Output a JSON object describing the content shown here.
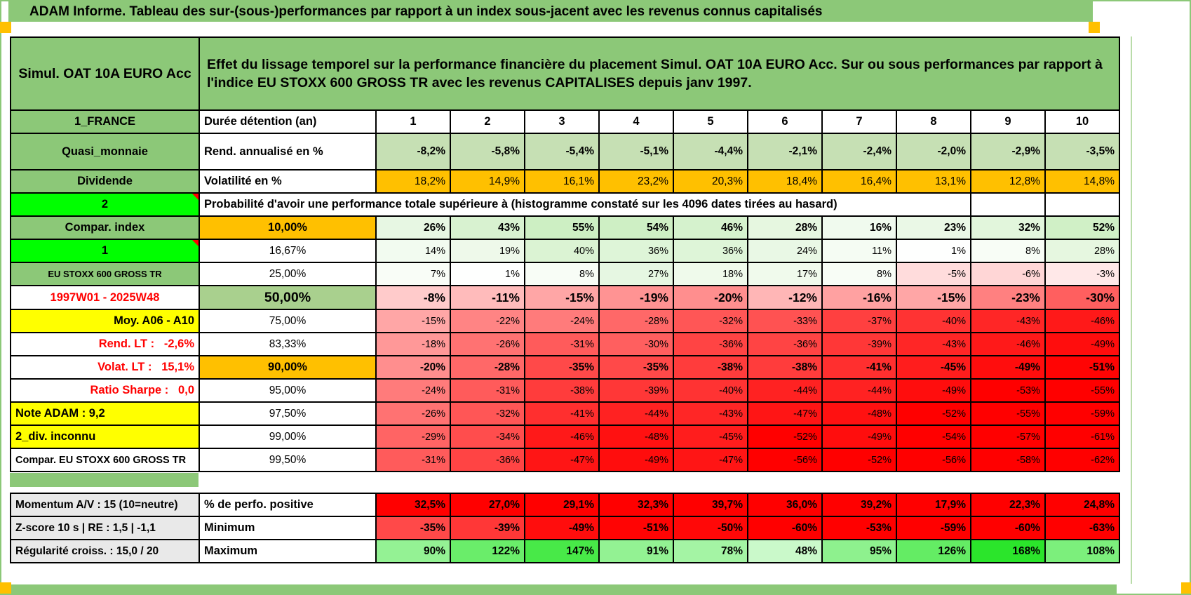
{
  "spreadsheet": {
    "title": "ADAM Informe. Tableau des sur-(sous-)performances par rapport à un index sous-jacent avec les revenus connus capitalisés",
    "product": "Simul. OAT 10A EURO Acc",
    "description": "Effet du lissage temporel sur la performance financière du placement Simul. OAT 10A EURO Acc. Sur ou sous performances par rapport à l'indice EU STOXX 600 GROSS TR avec les revenus CAPITALISES depuis janv 1997.",
    "columns": [
      "1",
      "2",
      "3",
      "4",
      "5",
      "6",
      "7",
      "8",
      "9",
      "10"
    ],
    "rows": [
      {
        "name": "holding-period",
        "a": "1_FRANCE",
        "aStyle": "green",
        "b": "Durée détention (an)",
        "bStyle": "lab",
        "vStyle": "hdr",
        "values": [
          "1",
          "2",
          "3",
          "4",
          "5",
          "6",
          "7",
          "8",
          "9",
          "10"
        ]
      },
      {
        "name": "annualized-return",
        "a": "Quasi_monnaie",
        "aStyle": "green",
        "b": "Rend. annualisé en %",
        "bStyle": "lab",
        "vStyle": "sage",
        "values": [
          "-8,2%",
          "-5,8%",
          "-5,4%",
          "-5,1%",
          "-4,4%",
          "-2,1%",
          "-2,4%",
          "-2,0%",
          "-2,9%",
          "-3,5%"
        ]
      },
      {
        "name": "volatility",
        "a": "Dividende",
        "aStyle": "green",
        "b": "Volatilité en %",
        "bStyle": "lab",
        "vStyle": "orange",
        "values": [
          "18,2%",
          "14,9%",
          "16,1%",
          "23,2%",
          "20,3%",
          "18,4%",
          "16,4%",
          "13,1%",
          "12,8%",
          "14,8%"
        ]
      },
      {
        "name": "probability-note",
        "kind": "proba",
        "a": "2",
        "aStyle": "bright",
        "text": "Probabilité d'avoir une performance totale supérieure à (histogramme constaté sur les 4096 dates tirées au hasard)"
      },
      {
        "name": "p10",
        "a": "Compar. index",
        "aStyle": "green",
        "b": "10,00%",
        "bStyle": "orangeC",
        "vStyle": "matB",
        "values": [
          "26%",
          "43%",
          "55%",
          "54%",
          "46%",
          "28%",
          "16%",
          "23%",
          "32%",
          "52%"
        ]
      },
      {
        "name": "p1667",
        "a": "1",
        "aStyle": "bright",
        "b": "16,67%",
        "bStyle": "plainC",
        "vStyle": "mat",
        "values": [
          "14%",
          "19%",
          "40%",
          "36%",
          "36%",
          "24%",
          "11%",
          "1%",
          "8%",
          "28%"
        ]
      },
      {
        "name": "p25",
        "a": "EU STOXX 600 GROSS TR",
        "aStyle": "greenSm",
        "b": "25,00%",
        "bStyle": "plainC",
        "vStyle": "mat",
        "values": [
          "7%",
          "1%",
          "8%",
          "27%",
          "18%",
          "17%",
          "8%",
          "-5%",
          "-6%",
          "-3%"
        ]
      },
      {
        "name": "p50",
        "a": "1997W01 - 2025W48",
        "aStyle": "redC",
        "b": "50,00%",
        "bStyle": "sageC",
        "vStyle": "matBig",
        "values": [
          "-8%",
          "-11%",
          "-15%",
          "-19%",
          "-20%",
          "-12%",
          "-16%",
          "-15%",
          "-23%",
          "-30%"
        ]
      },
      {
        "name": "p75",
        "a": "Moy. A06 - A10",
        "aStyle": "yellowR",
        "b": "75,00%",
        "bStyle": "plainC",
        "vStyle": "mat",
        "values": [
          "-15%",
          "-22%",
          "-24%",
          "-28%",
          "-32%",
          "-33%",
          "-37%",
          "-40%",
          "-43%",
          "-46%"
        ]
      },
      {
        "name": "p8333",
        "a": "Rend. LT :   -2,6%",
        "aStyle": "redR",
        "b": "83,33%",
        "bStyle": "plainC",
        "vStyle": "mat",
        "values": [
          "-18%",
          "-26%",
          "-31%",
          "-30%",
          "-36%",
          "-36%",
          "-39%",
          "-43%",
          "-46%",
          "-49%"
        ]
      },
      {
        "name": "p90",
        "a": "Volat. LT :   15,1%",
        "aStyle": "redR",
        "b": "90,00%",
        "bStyle": "orangeC",
        "vStyle": "matB",
        "values": [
          "-20%",
          "-28%",
          "-35%",
          "-35%",
          "-38%",
          "-38%",
          "-41%",
          "-45%",
          "-49%",
          "-51%"
        ]
      },
      {
        "name": "p95",
        "a": "Ratio Sharpe :   0,0",
        "aStyle": "redR",
        "b": "95,00%",
        "bStyle": "plainC",
        "vStyle": "mat",
        "values": [
          "-24%",
          "-31%",
          "-38%",
          "-39%",
          "-40%",
          "-44%",
          "-44%",
          "-49%",
          "-53%",
          "-55%"
        ]
      },
      {
        "name": "p975",
        "a": "Note ADAM : 9,2",
        "aStyle": "yellowL",
        "b": "97,50%",
        "bStyle": "plainC",
        "vStyle": "mat",
        "values": [
          "-26%",
          "-32%",
          "-41%",
          "-44%",
          "-43%",
          "-47%",
          "-48%",
          "-52%",
          "-55%",
          "-59%"
        ]
      },
      {
        "name": "p99",
        "a": "2_div. inconnu",
        "aStyle": "yellowL",
        "b": "99,00%",
        "bStyle": "plainC",
        "vStyle": "mat",
        "values": [
          "-29%",
          "-34%",
          "-46%",
          "-48%",
          "-45%",
          "-52%",
          "-49%",
          "-54%",
          "-57%",
          "-61%"
        ]
      },
      {
        "name": "p995",
        "a": "Compar. EU STOXX 600 GROSS TR",
        "aStyle": "whiteSm",
        "b": "99,50%",
        "bStyle": "plainC",
        "vStyle": "mat",
        "values": [
          "-31%",
          "-36%",
          "-47%",
          "-49%",
          "-47%",
          "-56%",
          "-52%",
          "-56%",
          "-58%",
          "-62%"
        ]
      }
    ],
    "bottom_rows": [
      {
        "name": "pct-positive",
        "a": "Momentum A/V : 15 (10=neutre)",
        "aStyle": "gray",
        "b": "% de perfo. positive",
        "bStyle": "lab",
        "vStyle": "red",
        "values": [
          "32,5%",
          "27,0%",
          "29,1%",
          "32,3%",
          "39,7%",
          "36,0%",
          "39,2%",
          "17,9%",
          "22,3%",
          "24,8%"
        ]
      },
      {
        "name": "minimum",
        "a": "Z-score 10 s | RE : 1,5 | -1,1",
        "aStyle": "gray",
        "b": "Minimum",
        "bStyle": "lab",
        "vStyle": "min",
        "values": [
          "-35%",
          "-39%",
          "-49%",
          "-51%",
          "-50%",
          "-60%",
          "-53%",
          "-59%",
          "-60%",
          "-63%"
        ]
      },
      {
        "name": "maximum",
        "a": "Régularité croiss. : 15,0 / 20",
        "aStyle": "gray",
        "b": "Maximum",
        "bStyle": "lab",
        "vStyle": "max",
        "values": [
          "90%",
          "122%",
          "147%",
          "91%",
          "78%",
          "48%",
          "95%",
          "126%",
          "168%",
          "108%"
        ]
      }
    ],
    "colors": {
      "band_green": "#8CC878",
      "cell_light_green": "#C6E0B4",
      "cell_mid_green": "#A9D08E",
      "accent_orange": "#FFC000",
      "accent_yellow": "#FFFF00",
      "flag_green": "#00FF00",
      "negative_red": "#FF0000",
      "label_gray": "#E9E9E9"
    }
  }
}
